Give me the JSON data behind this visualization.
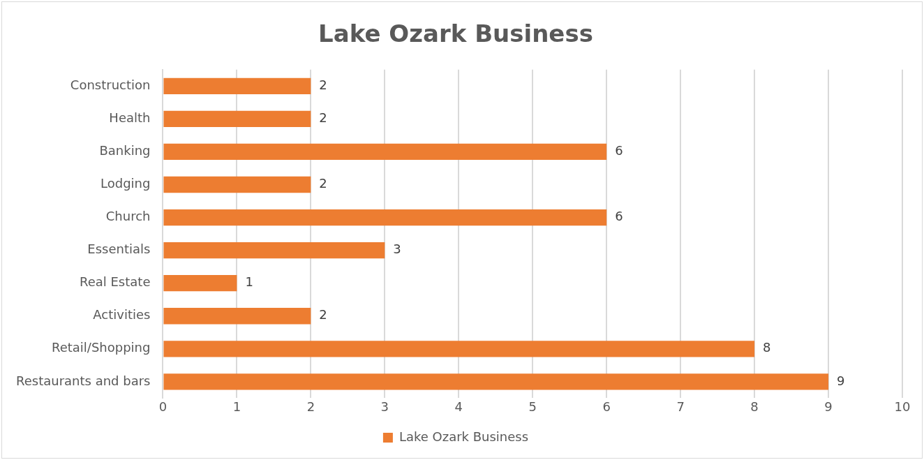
{
  "chart_data": {
    "type": "bar",
    "title": "Lake Ozark Business",
    "orientation": "horizontal",
    "categories": [
      "Construction",
      "Health",
      "Banking",
      "Lodging",
      "Church",
      "Essentials",
      "Real Estate",
      "Activities",
      "Retail/Shopping",
      "Restaurants and bars"
    ],
    "series": [
      {
        "name": "Lake Ozark Business",
        "color": "#ed7d31",
        "values": [
          2,
          2,
          6,
          2,
          6,
          3,
          1,
          2,
          8,
          9
        ]
      }
    ],
    "xlim": [
      0,
      10
    ],
    "xticks": [
      0,
      1,
      2,
      3,
      4,
      5,
      6,
      7,
      8,
      9,
      10
    ],
    "grid": "x",
    "legend": "bottom",
    "data_labels": true
  }
}
